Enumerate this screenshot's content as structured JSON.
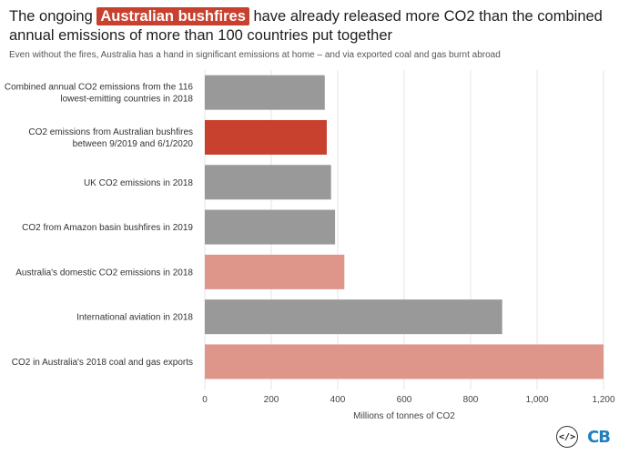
{
  "header": {
    "title_before": "The ongoing ",
    "title_highlight": "Australian bushfires",
    "title_after": " have already released more CO2 than the combined annual emissions of more than 100 countries put together",
    "subtitle": "Even without the fires, Australia has a hand in significant emissions at home – and via exported coal and gas burnt abroad"
  },
  "footer": {
    "embed_icon_text": "</>",
    "logo_text": "CB"
  },
  "colors": {
    "highlight": "#c8402e",
    "grey": "#999999",
    "pink": "#de958a"
  },
  "chart_data": {
    "type": "bar",
    "orientation": "horizontal",
    "categories": [
      [
        "Combined annual CO2 emissions from the 116",
        "lowest-emitting countries in 2018"
      ],
      [
        "CO2 emissions from Australian bushfires",
        "between 9/2019 and 6/1/2020"
      ],
      [
        "UK CO2 emissions in 2018"
      ],
      [
        "CO2 from Amazon basin bushfires in 2019"
      ],
      [
        "Australia's domestic CO2 emissions in 2018"
      ],
      [
        "International aviation in 2018"
      ],
      [
        "CO2 in Australia's 2018 coal and gas exports"
      ]
    ],
    "values": [
      361,
      367,
      380,
      392,
      420,
      895,
      1200
    ],
    "bar_colors": [
      "#999999",
      "#c8402e",
      "#999999",
      "#999999",
      "#de958a",
      "#999999",
      "#de958a"
    ],
    "xlabel": "Millions of tonnes of CO2",
    "xlim": [
      0,
      1200
    ],
    "ticks": [
      0,
      200,
      400,
      600,
      800,
      1000,
      1200
    ],
    "tick_labels": [
      "0",
      "200",
      "400",
      "600",
      "800",
      "1,000",
      "1,200"
    ],
    "grid": true
  }
}
